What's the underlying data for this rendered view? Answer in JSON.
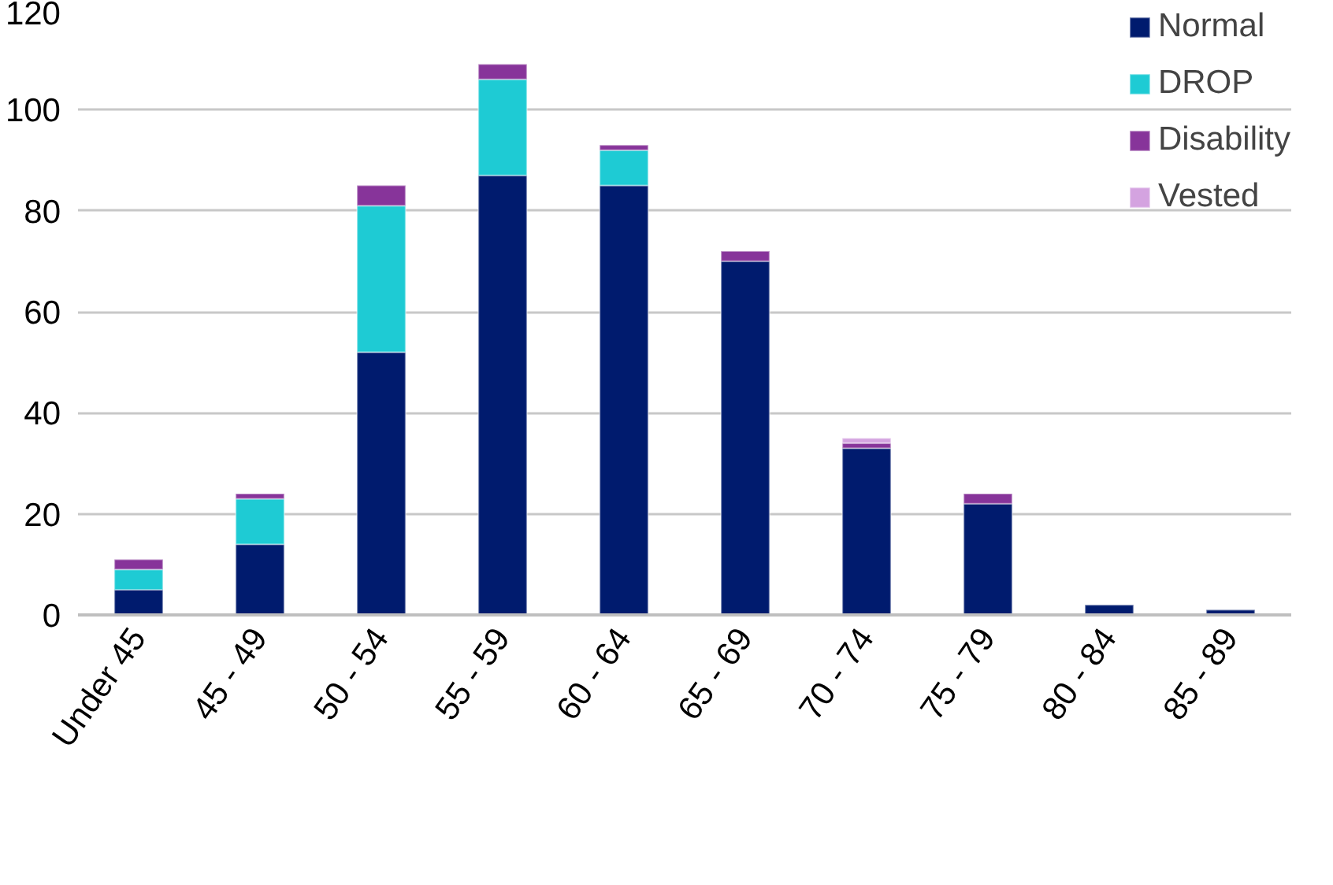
{
  "chart_data": {
    "type": "bar",
    "stacked": true,
    "categories": [
      "Under 45",
      "45 - 49",
      "50 - 54",
      "55 - 59",
      "60 - 64",
      "65 - 69",
      "70 - 74",
      "75 - 79",
      "80 - 84",
      "85 - 89"
    ],
    "series": [
      {
        "name": "Normal",
        "color": "#001b6e",
        "values": [
          5,
          14,
          52,
          87,
          85,
          70,
          33,
          22,
          2,
          1
        ]
      },
      {
        "name": "DROP",
        "color": "#1ecbd4",
        "values": [
          4,
          9,
          29,
          19,
          7,
          null,
          null,
          null,
          null,
          null
        ]
      },
      {
        "name": "Disability",
        "color": "#87349a",
        "values": [
          2,
          1,
          4,
          3,
          1,
          2,
          1,
          2,
          null,
          null
        ]
      },
      {
        "name": "Vested",
        "color": "#d4a3e0",
        "values": [
          null,
          null,
          null,
          null,
          null,
          null,
          1,
          null,
          null,
          null
        ]
      }
    ],
    "ylim": [
      0,
      120
    ],
    "yticks": [
      0,
      20,
      40,
      60,
      80,
      100,
      120
    ],
    "grid": "y",
    "legend": "top right"
  }
}
